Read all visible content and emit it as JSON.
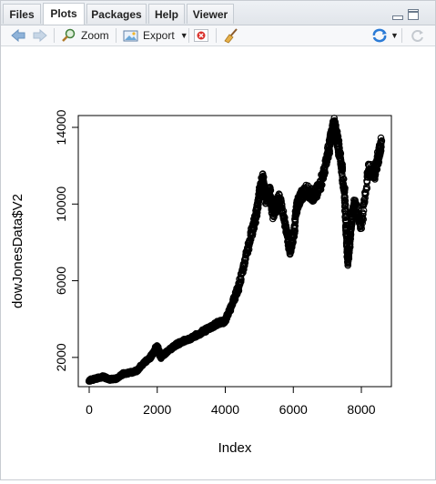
{
  "tabs": [
    {
      "label": "Files"
    },
    {
      "label": "Plots"
    },
    {
      "label": "Packages"
    },
    {
      "label": "Help"
    },
    {
      "label": "Viewer"
    }
  ],
  "toolbar": {
    "zoom_label": "Zoom",
    "export_label": "Export"
  },
  "chart_data": {
    "type": "scatter",
    "title": "",
    "xlabel": "Index",
    "ylabel": "dowJonesData$V2",
    "xlim": [
      0,
      9000
    ],
    "ylim": [
      400,
      14500
    ],
    "x_ticks": [
      0,
      2000,
      4000,
      6000,
      8000
    ],
    "x_tick_labels": [
      "0",
      "2000",
      "4000",
      "6000",
      "8000"
    ],
    "y_ticks": [
      2000,
      6000,
      10000,
      14000
    ],
    "y_tick_labels": [
      "2000",
      "6000",
      "10000",
      "14000"
    ],
    "marker": "open-circle",
    "color": "#000000",
    "series": [
      {
        "x": [
          0,
          200,
          400,
          600,
          800,
          1000,
          1200,
          1400,
          1600,
          1800,
          2000,
          2100,
          2300,
          2500,
          2700,
          3000,
          3300,
          3600,
          3800,
          4000,
          4200,
          4400,
          4600,
          4800,
          4900,
          5000,
          5100,
          5200,
          5300,
          5400,
          5600,
          5800,
          5900,
          6000,
          6100,
          6200,
          6400,
          6600,
          6800,
          7000,
          7100,
          7200,
          7300,
          7400,
          7500,
          7550,
          7600,
          7650,
          7700,
          7800,
          8000,
          8200,
          8400,
          8500,
          8600
        ],
        "y": [
          800,
          900,
          1000,
          850,
          900,
          1150,
          1200,
          1300,
          1700,
          2000,
          2600,
          2000,
          2300,
          2600,
          2800,
          3000,
          3300,
          3600,
          3800,
          3900,
          4800,
          5700,
          7200,
          8700,
          9400,
          10500,
          11300,
          10300,
          10700,
          9500,
          10300,
          8600,
          7500,
          8300,
          9800,
          10400,
          10700,
          10400,
          11000,
          12500,
          13400,
          14100,
          13300,
          12200,
          10800,
          8700,
          7000,
          7800,
          9000,
          10100,
          8800,
          11800,
          11600,
          12500,
          13200
        ]
      }
    ]
  }
}
